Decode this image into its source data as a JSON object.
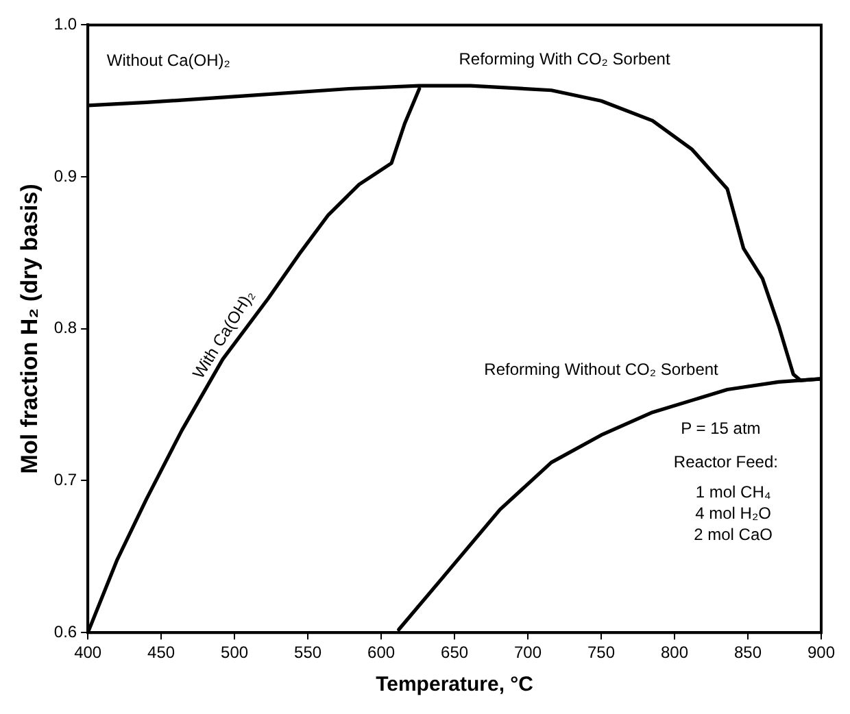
{
  "chart_data": {
    "type": "line",
    "xlabel": "Temperature, °C",
    "ylabel": "Mol fraction H₂ (dry basis)",
    "xlim": [
      400,
      900
    ],
    "xticks": [
      400,
      450,
      500,
      550,
      600,
      650,
      700,
      750,
      800,
      850,
      900
    ],
    "ylim": [
      0.6,
      1.0
    ],
    "yticks": [
      {
        "value": 0.6,
        "label": "0.6"
      },
      {
        "value": 0.7,
        "label": "0.7"
      },
      {
        "value": 0.8,
        "label": "0.8"
      },
      {
        "value": 0.9,
        "label": "0.9"
      },
      {
        "value": 1.0,
        "label": "1.0"
      }
    ],
    "grid": false,
    "legend": false,
    "marker": "none",
    "line_style": "solid",
    "series": [
      {
        "color": "#000000",
        "x": [
          400,
          440,
          502,
          578,
          626,
          661,
          716,
          750,
          785,
          812,
          836,
          847,
          860,
          871,
          881,
          886,
          900
        ],
        "values": [
          0.947,
          0.949,
          0.953,
          0.958,
          0.96,
          0.96,
          0.957,
          0.95,
          0.937,
          0.918,
          0.892,
          0.853,
          0.833,
          0.802,
          0.77,
          0.766,
          0.767
        ]
      },
      {
        "color": "#000000",
        "x": [
          400,
          420,
          440,
          464,
          492,
          523,
          544,
          564,
          585,
          607,
          616,
          626
        ],
        "values": [
          0.6,
          0.648,
          0.688,
          0.733,
          0.78,
          0.82,
          0.849,
          0.875,
          0.895,
          0.909,
          0.935,
          0.958
        ]
      },
      {
        "color": "#000000",
        "x": [
          612,
          640,
          681,
          716,
          750,
          785,
          836,
          871,
          900
        ],
        "values": [
          0.602,
          0.634,
          0.681,
          0.712,
          0.73,
          0.745,
          0.76,
          0.765,
          0.767
        ]
      }
    ],
    "annotations": [
      "Without Ca(OH)₂",
      "Reforming With CO₂ Sorbent",
      "With Ca(OH)₂",
      "Reforming Without CO₂ Sorbent",
      "P = 15 atm",
      "Reactor Feed:",
      "1 mol CH₄",
      "4 mol H₂O",
      "2 mol CaO"
    ]
  }
}
